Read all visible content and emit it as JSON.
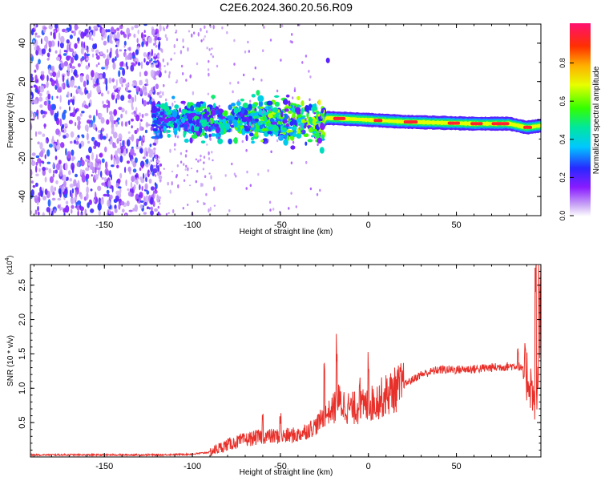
{
  "page_title": "C2E6.2024.360.20.56.R09",
  "chart_data": [
    {
      "type": "heatmap",
      "xlabel": "Height of straight line (km)",
      "ylabel": "Frequency (Hz)",
      "xlim": [
        -192,
        98
      ],
      "ylim": [
        -50,
        50
      ],
      "x_ticks": [
        -150,
        -100,
        -50,
        0,
        50
      ],
      "y_ticks": [
        -40,
        -20,
        0,
        20,
        40
      ],
      "colorbar": {
        "label": "Normalized spectral amplitude",
        "range": [
          0.0,
          1.0
        ],
        "ticks": [
          "0.0",
          "0.2",
          "0.4",
          "0.6",
          "0.8"
        ]
      },
      "centerline": [
        {
          "x": -192,
          "y": 0
        },
        {
          "x": -120,
          "y": 0
        },
        {
          "x": -60,
          "y": 0
        },
        {
          "x": -25,
          "y": -1
        },
        {
          "x": -24,
          "y": 1
        },
        {
          "x": 0,
          "y": 0
        },
        {
          "x": 20,
          "y": -1
        },
        {
          "x": 60,
          "y": -2
        },
        {
          "x": 80,
          "y": -2
        },
        {
          "x": 90,
          "y": -4
        },
        {
          "x": 98,
          "y": -3
        }
      ],
      "bands": [
        {
          "from": -192,
          "to": -122,
          "character": "broadband noise",
          "peak_amplitude": 0.25
        },
        {
          "from": -122,
          "to": -25,
          "character": "scattered echoes near 0 Hz",
          "peak_amplitude": 0.45
        },
        {
          "from": -25,
          "to": 98,
          "character": "narrow line near 0 Hz",
          "peak_amplitude": 1.0
        }
      ]
    },
    {
      "type": "line",
      "xlabel": "Height of straight line (km)",
      "ylabel": "SNR (10 * v/v)",
      "y_multiplier_label": "(x10",
      "y_multiplier_exp": "4",
      "xlim": [
        -192,
        98
      ],
      "ylim": [
        0,
        2.8
      ],
      "x_ticks": [
        -150,
        -100,
        -50,
        0,
        50
      ],
      "y_ticks": [
        0.5,
        1.0,
        1.5,
        2.0,
        2.5
      ],
      "y_tick_labels": [
        "0.5",
        "1.0",
        "1.5",
        "2.0",
        "2.5"
      ],
      "series": [
        {
          "color": "#e8302a",
          "x": [
            -192,
            -150,
            -120,
            -100,
            -90,
            -80,
            -70,
            -60,
            -50,
            -40,
            -30,
            -25,
            -20,
            -17,
            -10,
            0,
            10,
            20,
            30,
            40,
            50,
            60,
            70,
            80,
            85,
            90,
            93,
            95,
            97,
            98
          ],
          "y": [
            0.03,
            0.03,
            0.03,
            0.04,
            0.07,
            0.18,
            0.25,
            0.3,
            0.3,
            0.32,
            0.45,
            0.6,
            0.7,
            0.8,
            0.7,
            0.75,
            0.9,
            1.05,
            1.2,
            1.27,
            1.27,
            1.28,
            1.3,
            1.32,
            1.33,
            1.2,
            1.0,
            0.6,
            1.4,
            2.3
          ],
          "peaks": [
            {
              "x": -60,
              "y": 0.55
            },
            {
              "x": -50,
              "y": 0.55
            },
            {
              "x": -25,
              "y": 1.35
            },
            {
              "x": -18,
              "y": 1.6
            },
            {
              "x": -5,
              "y": 1.25
            },
            {
              "x": 0,
              "y": 1.45
            },
            {
              "x": 85,
              "y": 1.55
            },
            {
              "x": 95,
              "y": 2.6
            },
            {
              "x": 97,
              "y": 2.75
            }
          ]
        }
      ]
    }
  ]
}
